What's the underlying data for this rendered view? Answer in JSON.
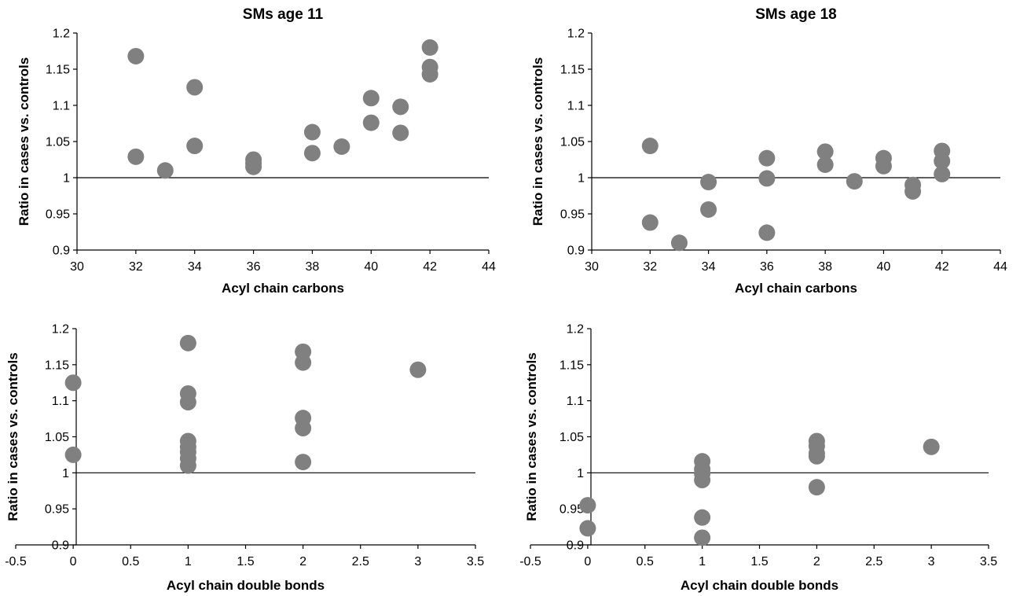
{
  "chart_data": [
    {
      "type": "scatter",
      "title": "SMs age 11",
      "xlabel": "Acyl chain carbons",
      "ylabel": "Ratio in cases vs. controls",
      "xlim": [
        30,
        44
      ],
      "ylim": [
        0.9,
        1.2
      ],
      "xticks": [
        "30",
        "32",
        "34",
        "36",
        "38",
        "40",
        "42",
        "44"
      ],
      "yticks": [
        "0.9",
        "0.95",
        "1",
        "1.05",
        "1.1",
        "1.15",
        "1.2"
      ],
      "reference_y": 1,
      "points": [
        {
          "x": 32,
          "y": 1.168
        },
        {
          "x": 32,
          "y": 1.029
        },
        {
          "x": 33,
          "y": 1.01
        },
        {
          "x": 34,
          "y": 1.125
        },
        {
          "x": 34,
          "y": 1.044
        },
        {
          "x": 36,
          "y": 1.025
        },
        {
          "x": 36,
          "y": 1.02
        },
        {
          "x": 36,
          "y": 1.015
        },
        {
          "x": 38,
          "y": 1.063
        },
        {
          "x": 38,
          "y": 1.034
        },
        {
          "x": 39,
          "y": 1.043
        },
        {
          "x": 40,
          "y": 1.11
        },
        {
          "x": 40,
          "y": 1.076
        },
        {
          "x": 41,
          "y": 1.098
        },
        {
          "x": 41,
          "y": 1.062
        },
        {
          "x": 42,
          "y": 1.18
        },
        {
          "x": 42,
          "y": 1.153
        },
        {
          "x": 42,
          "y": 1.143
        }
      ]
    },
    {
      "type": "scatter",
      "title": "SMs age 18",
      "xlabel": "Acyl chain carbons",
      "ylabel": "Ratio in cases vs. controls",
      "xlim": [
        30,
        44
      ],
      "ylim": [
        0.9,
        1.2
      ],
      "xticks": [
        "30",
        "32",
        "34",
        "36",
        "38",
        "40",
        "42",
        "44"
      ],
      "yticks": [
        "0.9",
        "0.95",
        "1",
        "1.05",
        "1.1",
        "1.15",
        "1.2"
      ],
      "reference_y": 1,
      "points": [
        {
          "x": 32,
          "y": 1.044
        },
        {
          "x": 32,
          "y": 0.938
        },
        {
          "x": 33,
          "y": 0.91
        },
        {
          "x": 34,
          "y": 0.994
        },
        {
          "x": 34,
          "y": 0.956
        },
        {
          "x": 36,
          "y": 1.027
        },
        {
          "x": 36,
          "y": 0.999
        },
        {
          "x": 36,
          "y": 0.924
        },
        {
          "x": 38,
          "y": 1.036
        },
        {
          "x": 38,
          "y": 1.018
        },
        {
          "x": 39,
          "y": 0.995
        },
        {
          "x": 40,
          "y": 1.027
        },
        {
          "x": 40,
          "y": 1.016
        },
        {
          "x": 41,
          "y": 0.99
        },
        {
          "x": 41,
          "y": 0.981
        },
        {
          "x": 42,
          "y": 1.037
        },
        {
          "x": 42,
          "y": 1.023
        },
        {
          "x": 42,
          "y": 1.005
        }
      ]
    },
    {
      "type": "scatter",
      "title": "",
      "xlabel": "Acyl chain double bonds",
      "ylabel": "Ratio in cases vs. controls",
      "xlim": [
        -0.5,
        3.5
      ],
      "ylim": [
        0.9,
        1.2
      ],
      "xticks": [
        "-0.5",
        "0",
        "0.5",
        "1",
        "1.5",
        "2",
        "2.5",
        "3",
        "3.5"
      ],
      "yticks": [
        "0.9",
        "0.95",
        "1",
        "1.05",
        "1.1",
        "1.15",
        "1.2"
      ],
      "reference_y": 1,
      "points": [
        {
          "x": 0,
          "y": 1.125
        },
        {
          "x": 0,
          "y": 1.025
        },
        {
          "x": 1,
          "y": 1.18
        },
        {
          "x": 1,
          "y": 1.11
        },
        {
          "x": 1,
          "y": 1.098
        },
        {
          "x": 1,
          "y": 1.044
        },
        {
          "x": 1,
          "y": 1.036
        },
        {
          "x": 1,
          "y": 1.029
        },
        {
          "x": 1,
          "y": 1.02
        },
        {
          "x": 1,
          "y": 1.01
        },
        {
          "x": 2,
          "y": 1.168
        },
        {
          "x": 2,
          "y": 1.153
        },
        {
          "x": 2,
          "y": 1.076
        },
        {
          "x": 2,
          "y": 1.062
        },
        {
          "x": 2,
          "y": 1.015
        },
        {
          "x": 3,
          "y": 1.143
        }
      ]
    },
    {
      "type": "scatter",
      "title": "",
      "xlabel": "Acyl chain double bonds",
      "ylabel": "Ratio in cases vs. controls",
      "xlim": [
        -0.5,
        3.5
      ],
      "ylim": [
        0.9,
        1.2
      ],
      "xticks": [
        "-0.5",
        "0",
        "0.5",
        "1",
        "1.5",
        "2",
        "2.5",
        "3",
        "3.5"
      ],
      "yticks": [
        "0.9",
        "0.95",
        "1",
        "1.05",
        "1.1",
        "1.15",
        "1.2"
      ],
      "reference_y": 1,
      "points": [
        {
          "x": 0,
          "y": 0.955
        },
        {
          "x": 0,
          "y": 0.923
        },
        {
          "x": 1,
          "y": 1.016
        },
        {
          "x": 1,
          "y": 1.005
        },
        {
          "x": 1,
          "y": 0.999
        },
        {
          "x": 1,
          "y": 0.99
        },
        {
          "x": 1,
          "y": 0.938
        },
        {
          "x": 1,
          "y": 0.91
        },
        {
          "x": 2,
          "y": 1.044
        },
        {
          "x": 2,
          "y": 1.037
        },
        {
          "x": 2,
          "y": 1.027
        },
        {
          "x": 2,
          "y": 1.023
        },
        {
          "x": 2,
          "y": 0.98
        },
        {
          "x": 3,
          "y": 1.036
        }
      ]
    }
  ]
}
